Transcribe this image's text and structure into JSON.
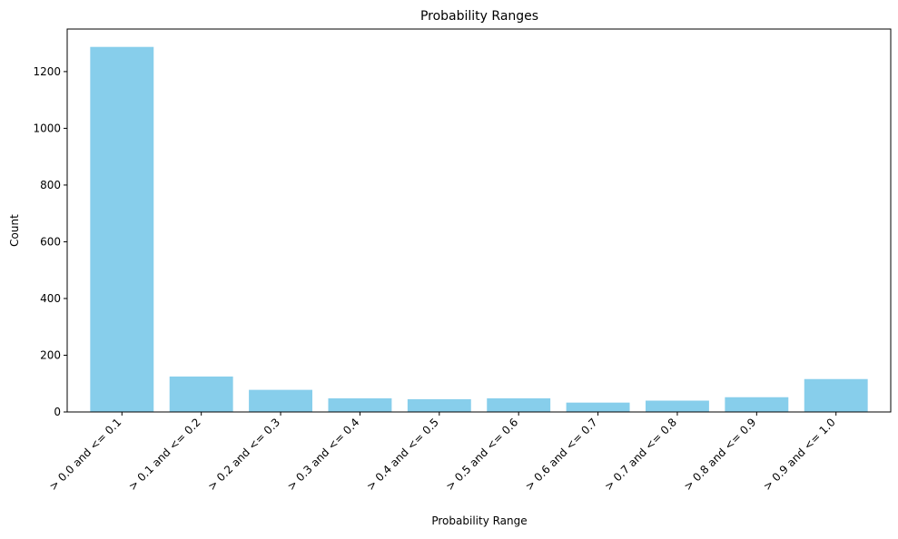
{
  "chart_data": {
    "type": "bar",
    "title": "Probability Ranges",
    "xlabel": "Probability Range",
    "ylabel": "Count",
    "categories": [
      "> 0.0 and <= 0.1",
      "> 0.1 and <= 0.2",
      "> 0.2 and <= 0.3",
      "> 0.3 and <= 0.4",
      "> 0.4 and <= 0.5",
      "> 0.5 and <= 0.6",
      "> 0.6 and <= 0.7",
      "> 0.7 and <= 0.8",
      "> 0.8 and <= 0.9",
      "> 0.9 and <= 1.0"
    ],
    "values": [
      1287,
      125,
      78,
      48,
      45,
      48,
      33,
      40,
      52,
      116
    ],
    "ylim": [
      0,
      1350
    ],
    "yticks": [
      0,
      200,
      400,
      600,
      800,
      1000,
      1200
    ],
    "grid": false,
    "legend": "none",
    "colors": {
      "bar": "#87ceeb",
      "axis": "#000000",
      "background": "#ffffff"
    }
  }
}
